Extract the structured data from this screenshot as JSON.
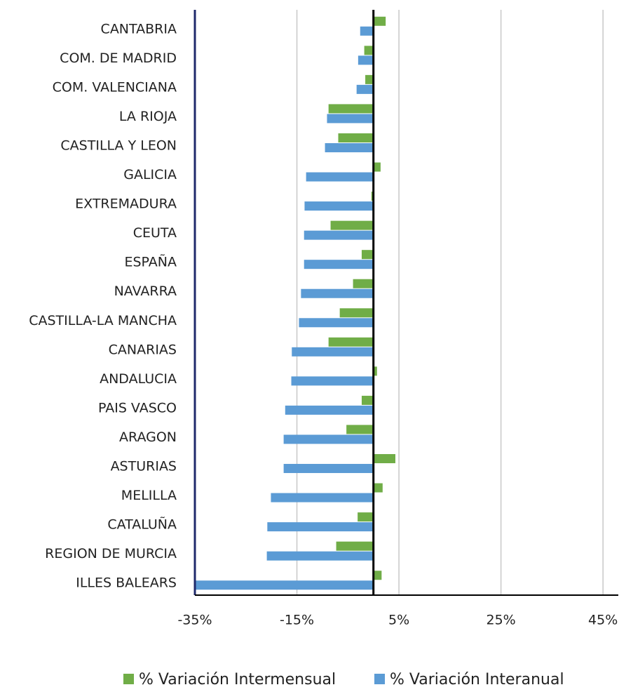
{
  "chart_data": {
    "type": "bar",
    "orientation": "horizontal",
    "categories": [
      "CANTABRIA",
      "COM. DE MADRID",
      "COM. VALENCIANA",
      "LA RIOJA",
      "CASTILLA Y LEON",
      "GALICIA",
      "EXTREMADURA",
      "CEUTA",
      "ESPAÑA",
      "NAVARRA",
      "CASTILLA-LA MANCHA",
      "CANARIAS",
      "ANDALUCIA",
      "PAIS VASCO",
      "ARAGON",
      "ASTURIAS",
      "MELILLA",
      "CATALUÑA",
      "REGION DE MURCIA",
      "ILLES BALEARS"
    ],
    "series": [
      {
        "name": "% Variación Intermensual",
        "color": "#70ad47",
        "values": [
          2.4,
          -1.8,
          -1.6,
          -8.8,
          -6.9,
          1.4,
          -0.4,
          -8.4,
          -2.3,
          -4.0,
          -6.6,
          -8.8,
          0.7,
          -2.3,
          -5.3,
          4.3,
          1.8,
          -3.1,
          -7.3,
          1.6
        ]
      },
      {
        "name": "% Variación Interanual",
        "color": "#5b9bd5",
        "values": [
          -2.6,
          -3.0,
          -3.3,
          -9.1,
          -9.5,
          -13.2,
          -13.5,
          -13.6,
          -13.6,
          -14.2,
          -14.6,
          -16.0,
          -16.1,
          -17.3,
          -17.6,
          -17.6,
          -20.1,
          -20.8,
          -20.9,
          -34.8
        ]
      }
    ],
    "xlim": [
      -35,
      48
    ],
    "xticks": [
      {
        "value": -35,
        "label": "-35%"
      },
      {
        "value": -15,
        "label": "-15%"
      },
      {
        "value": 5,
        "label": "5%"
      },
      {
        "value": 25,
        "label": "25%"
      },
      {
        "value": 45,
        "label": "45%"
      }
    ],
    "grid": true,
    "legend": "bottom"
  }
}
